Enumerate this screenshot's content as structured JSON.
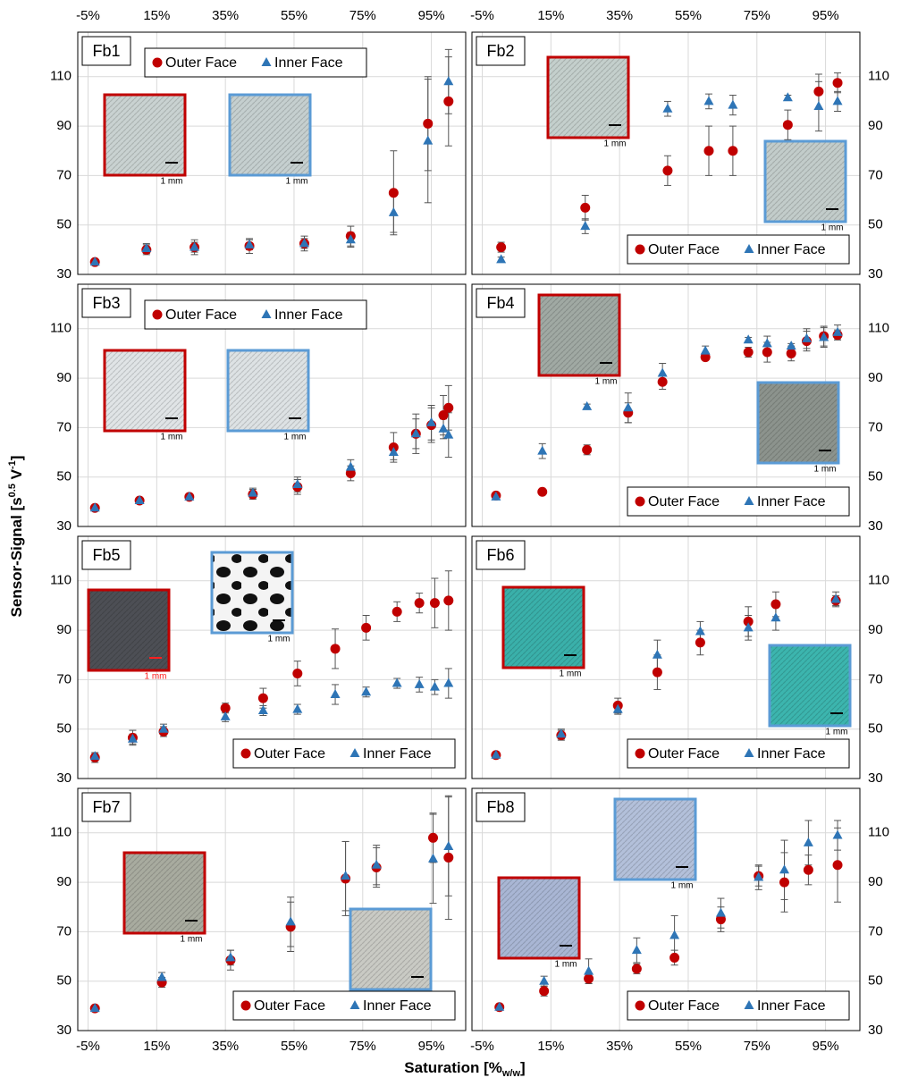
{
  "chart_data": [
    {
      "type": "scatter",
      "title": "Fb1",
      "xlim": [
        -8,
        105
      ],
      "ylim": [
        30,
        128
      ],
      "xticks": [
        {
          "value": -5,
          "label": "-5%"
        },
        {
          "value": 15,
          "label": "15%"
        },
        {
          "value": 35,
          "label": "35%"
        },
        {
          "value": 55,
          "label": "55%"
        },
        {
          "value": 75,
          "label": "75%"
        },
        {
          "value": 95,
          "label": "95%"
        }
      ],
      "yticks": [
        30,
        50,
        70,
        90,
        110
      ],
      "grid": true,
      "legend": "top",
      "series": [
        {
          "name": "Outer Face",
          "color": "#c00000",
          "marker": "circle",
          "x": [
            -3,
            12,
            26,
            42,
            58,
            71.5,
            84,
            94,
            100
          ],
          "values": [
            35,
            40,
            41,
            41.5,
            42.5,
            45.5,
            63,
            91,
            100
          ],
          "errors": [
            1,
            2,
            3,
            3,
            3,
            4,
            17,
            19,
            18
          ]
        },
        {
          "name": "Inner Face",
          "color": "#2e75b6",
          "marker": "triangle",
          "x": [
            -3,
            12,
            26,
            42,
            58,
            71.5,
            84,
            94,
            100
          ],
          "values": [
            35,
            40.5,
            41,
            42,
            42.5,
            44,
            55,
            84,
            108
          ],
          "errors": [
            1,
            2,
            2,
            2,
            2,
            3,
            8,
            25,
            13
          ]
        }
      ],
      "inset_labels": [
        "1 mm",
        "1 mm"
      ]
    },
    {
      "type": "scatter",
      "title": "Fb2",
      "xlim": [
        -8,
        105
      ],
      "ylim": [
        30,
        128
      ],
      "xticks": [
        {
          "value": -5,
          "label": "-5%"
        },
        {
          "value": 15,
          "label": "15%"
        },
        {
          "value": 35,
          "label": "35%"
        },
        {
          "value": 55,
          "label": "55%"
        },
        {
          "value": 75,
          "label": "75%"
        },
        {
          "value": 95,
          "label": "95%"
        }
      ],
      "yticks": [
        30,
        50,
        70,
        90,
        110
      ],
      "grid": true,
      "legend": "bottom",
      "series": [
        {
          "name": "Outer Face",
          "color": "#c00000",
          "marker": "circle",
          "x": [
            0.5,
            25,
            49,
            61,
            68,
            84,
            93,
            98.5
          ],
          "values": [
            41,
            57,
            72,
            80,
            80,
            90.5,
            104,
            107.5
          ],
          "errors": [
            2,
            5,
            6,
            10,
            10,
            6,
            7,
            4
          ]
        },
        {
          "name": "Inner Face",
          "color": "#2e75b6",
          "marker": "triangle",
          "x": [
            0.5,
            25,
            49,
            61,
            68,
            84,
            93,
            98.5
          ],
          "values": [
            36,
            49.5,
            97,
            100,
            98.5,
            101.5,
            98,
            100
          ],
          "errors": [
            1,
            3,
            3,
            3,
            4,
            1,
            10,
            4
          ]
        }
      ],
      "inset_labels": [
        "1 mm",
        "1 mm"
      ]
    },
    {
      "type": "scatter",
      "title": "Fb3",
      "xlim": [
        -8,
        105
      ],
      "ylim": [
        30,
        128
      ],
      "xticks": [
        {
          "value": -5,
          "label": "-5%"
        },
        {
          "value": 15,
          "label": "15%"
        },
        {
          "value": 35,
          "label": "35%"
        },
        {
          "value": 55,
          "label": "55%"
        },
        {
          "value": 75,
          "label": "75%"
        },
        {
          "value": 95,
          "label": "95%"
        }
      ],
      "yticks": [
        30,
        50,
        70,
        90,
        110
      ],
      "grid": true,
      "legend": "top",
      "series": [
        {
          "name": "Outer Face",
          "color": "#c00000",
          "marker": "circle",
          "x": [
            -3,
            10,
            24.5,
            43,
            56,
            71.5,
            84,
            90.5,
            95,
            98.5,
            100
          ],
          "values": [
            37.5,
            40.5,
            42,
            43,
            46,
            51.5,
            62,
            67.5,
            71,
            75,
            78
          ],
          "errors": [
            1,
            1,
            1,
            2,
            3,
            3,
            6,
            8,
            7,
            8,
            9
          ]
        },
        {
          "name": "Inner Face",
          "color": "#2e75b6",
          "marker": "triangle",
          "x": [
            -3,
            10,
            24.5,
            43,
            56,
            71.5,
            84,
            90.5,
            95,
            98.5,
            100
          ],
          "values": [
            37.5,
            40.5,
            42,
            43.5,
            47,
            54,
            60,
            67.5,
            72,
            69.5,
            67
          ],
          "errors": [
            1,
            1,
            1,
            2,
            3,
            3,
            3,
            6,
            7,
            4,
            9
          ]
        }
      ],
      "inset_labels": [
        "1 mm",
        "1 mm"
      ]
    },
    {
      "type": "scatter",
      "title": "Fb4",
      "xlim": [
        -8,
        105
      ],
      "ylim": [
        30,
        128
      ],
      "xticks": [
        {
          "value": -5,
          "label": "-5%"
        },
        {
          "value": 15,
          "label": "15%"
        },
        {
          "value": 35,
          "label": "35%"
        },
        {
          "value": 55,
          "label": "55%"
        },
        {
          "value": 75,
          "label": "75%"
        },
        {
          "value": 95,
          "label": "95%"
        }
      ],
      "yticks": [
        30,
        50,
        70,
        90,
        110
      ],
      "grid": true,
      "legend": "bottom",
      "series": [
        {
          "name": "Outer Face",
          "color": "#c00000",
          "marker": "circle",
          "x": [
            -1,
            12.5,
            25.5,
            37.5,
            47.5,
            60,
            72.5,
            78,
            85,
            89.5,
            94.5,
            98.5
          ],
          "values": [
            42.5,
            44,
            61,
            76,
            88.5,
            98.5,
            100.5,
            100.5,
            100,
            105,
            107,
            107.5
          ],
          "errors": [
            1,
            1,
            2,
            4,
            3,
            1,
            2,
            4,
            3,
            4,
            4,
            2
          ]
        },
        {
          "name": "Inner Face",
          "color": "#2e75b6",
          "marker": "triangle",
          "x": [
            -1,
            12.5,
            25.5,
            37.5,
            47.5,
            60,
            72.5,
            78,
            85,
            89.5,
            94.5,
            98.5
          ],
          "values": [
            42,
            60.5,
            78.5,
            78,
            92,
            101,
            105.5,
            104,
            103,
            106,
            106.5,
            108.5
          ],
          "errors": [
            1,
            3,
            1,
            6,
            4,
            2,
            1,
            3,
            1,
            4,
            4,
            3
          ]
        }
      ],
      "inset_labels": [
        "1 mm",
        "1 mm"
      ]
    },
    {
      "type": "scatter",
      "title": "Fb5",
      "xlim": [
        -8,
        105
      ],
      "ylim": [
        30,
        128
      ],
      "xticks": [
        {
          "value": -5,
          "label": "-5%"
        },
        {
          "value": 15,
          "label": "15%"
        },
        {
          "value": 35,
          "label": "35%"
        },
        {
          "value": 55,
          "label": "55%"
        },
        {
          "value": 75,
          "label": "75%"
        },
        {
          "value": 95,
          "label": "95%"
        }
      ],
      "yticks": [
        30,
        50,
        70,
        90,
        110
      ],
      "grid": true,
      "legend": "bottom",
      "series": [
        {
          "name": "Outer Face",
          "color": "#c00000",
          "marker": "circle",
          "x": [
            -3,
            8,
            17,
            35,
            46,
            56,
            67,
            76,
            85,
            91.5,
            96,
            100
          ],
          "values": [
            38.5,
            46.5,
            49,
            58.5,
            62.5,
            72.5,
            82.5,
            91,
            97.5,
            101,
            101,
            102
          ],
          "errors": [
            2,
            3,
            2,
            2,
            4,
            5,
            8,
            5,
            4,
            4,
            10,
            12
          ]
        },
        {
          "name": "Inner Face",
          "color": "#2e75b6",
          "marker": "triangle",
          "x": [
            -3,
            8,
            17,
            35,
            46,
            56,
            67,
            76,
            85,
            91.5,
            96,
            100
          ],
          "values": [
            39,
            46,
            50,
            55,
            57.5,
            58,
            64,
            65,
            68.5,
            68,
            67,
            68.5
          ],
          "errors": [
            1,
            2,
            2,
            2,
            2,
            2,
            4,
            2,
            2,
            3,
            3,
            6
          ]
        }
      ],
      "inset_labels": [
        "1 mm",
        "1 mm"
      ]
    },
    {
      "type": "scatter",
      "title": "Fb6",
      "xlim": [
        -8,
        105
      ],
      "ylim": [
        30,
        128
      ],
      "xticks": [
        {
          "value": -5,
          "label": "-5%"
        },
        {
          "value": 15,
          "label": "15%"
        },
        {
          "value": 35,
          "label": "35%"
        },
        {
          "value": 55,
          "label": "55%"
        },
        {
          "value": 75,
          "label": "75%"
        },
        {
          "value": 95,
          "label": "95%"
        }
      ],
      "yticks": [
        30,
        50,
        70,
        90,
        110
      ],
      "grid": true,
      "legend": "bottom",
      "series": [
        {
          "name": "Outer Face",
          "color": "#c00000",
          "marker": "circle",
          "x": [
            -1,
            18,
            34.5,
            46,
            58.5,
            72.5,
            80.5,
            98
          ],
          "values": [
            39.5,
            47.5,
            59.5,
            73,
            85,
            93.5,
            100.5,
            102
          ],
          "errors": [
            1,
            2,
            3,
            7,
            5,
            6,
            5,
            2
          ]
        },
        {
          "name": "Inner Face",
          "color": "#2e75b6",
          "marker": "triangle",
          "x": [
            -1,
            18,
            34.5,
            46,
            58.5,
            72.5,
            80.5,
            98
          ],
          "values": [
            39.5,
            48,
            58,
            80,
            89.5,
            91,
            95,
            102.5
          ],
          "errors": [
            1,
            2,
            2,
            6,
            4,
            5,
            5,
            3
          ]
        }
      ],
      "inset_labels": [
        "1 mm",
        "1 mm"
      ]
    },
    {
      "type": "scatter",
      "title": "Fb7",
      "xlim": [
        -8,
        105
      ],
      "ylim": [
        30,
        128
      ],
      "xticks": [
        {
          "value": -5,
          "label": "-5%"
        },
        {
          "value": 15,
          "label": "15%"
        },
        {
          "value": 35,
          "label": "35%"
        },
        {
          "value": 55,
          "label": "55%"
        },
        {
          "value": 75,
          "label": "75%"
        },
        {
          "value": 95,
          "label": "95%"
        }
      ],
      "yticks": [
        30,
        50,
        70,
        90,
        110
      ],
      "grid": true,
      "legend": "bottom",
      "series": [
        {
          "name": "Outer Face",
          "color": "#c00000",
          "marker": "circle",
          "x": [
            -3,
            16.5,
            36.5,
            54,
            70,
            79,
            95.5,
            100
          ],
          "values": [
            39,
            49.5,
            58.5,
            72,
            91.5,
            96,
            108,
            100
          ],
          "errors": [
            1,
            2,
            4,
            10,
            15,
            8,
            10,
            25
          ]
        },
        {
          "name": "Inner Face",
          "color": "#2e75b6",
          "marker": "triangle",
          "x": [
            -3,
            16.5,
            36.5,
            54,
            70,
            79,
            95.5,
            100
          ],
          "values": [
            39,
            51.5,
            59.5,
            74,
            92.5,
            97,
            99.5,
            104.5
          ],
          "errors": [
            1,
            2,
            3,
            10,
            14,
            8,
            18,
            20
          ]
        }
      ],
      "inset_labels": [
        "1 mm",
        "1 mm"
      ]
    },
    {
      "type": "scatter",
      "title": "Fb8",
      "xlim": [
        -8,
        105
      ],
      "ylim": [
        30,
        128
      ],
      "xticks": [
        {
          "value": -5,
          "label": "-5%"
        },
        {
          "value": 15,
          "label": "15%"
        },
        {
          "value": 35,
          "label": "35%"
        },
        {
          "value": 55,
          "label": "55%"
        },
        {
          "value": 75,
          "label": "75%"
        },
        {
          "value": 95,
          "label": "95%"
        }
      ],
      "yticks": [
        30,
        50,
        70,
        90,
        110
      ],
      "grid": true,
      "legend": "bottom",
      "series": [
        {
          "name": "Outer Face",
          "color": "#c00000",
          "marker": "circle",
          "x": [
            0,
            13,
            26,
            40,
            51,
            64.5,
            75.5,
            83,
            90,
            98.5
          ],
          "values": [
            39.5,
            46,
            51,
            55,
            59.5,
            75,
            92.5,
            90,
            95,
            97
          ],
          "errors": [
            1,
            2,
            2,
            2,
            3,
            5,
            4,
            12,
            6,
            15
          ]
        },
        {
          "name": "Inner Face",
          "color": "#2e75b6",
          "marker": "triangle",
          "x": [
            0,
            13,
            26,
            40,
            51,
            64.5,
            75.5,
            83,
            90,
            98.5
          ],
          "values": [
            39.5,
            50,
            54,
            62.5,
            68.5,
            77.5,
            92,
            95,
            106,
            109
          ],
          "errors": [
            1,
            2,
            5,
            5,
            8,
            6,
            5,
            12,
            9,
            6
          ]
        }
      ],
      "inset_labels": [
        "1 mm",
        "1 mm"
      ]
    }
  ],
  "axis_labels": {
    "x": [
      "Saturation [%",
      "w/w",
      "]"
    ],
    "y": [
      "Sensor-Signal [s",
      "0.5",
      " V",
      "-1",
      "]"
    ]
  }
}
